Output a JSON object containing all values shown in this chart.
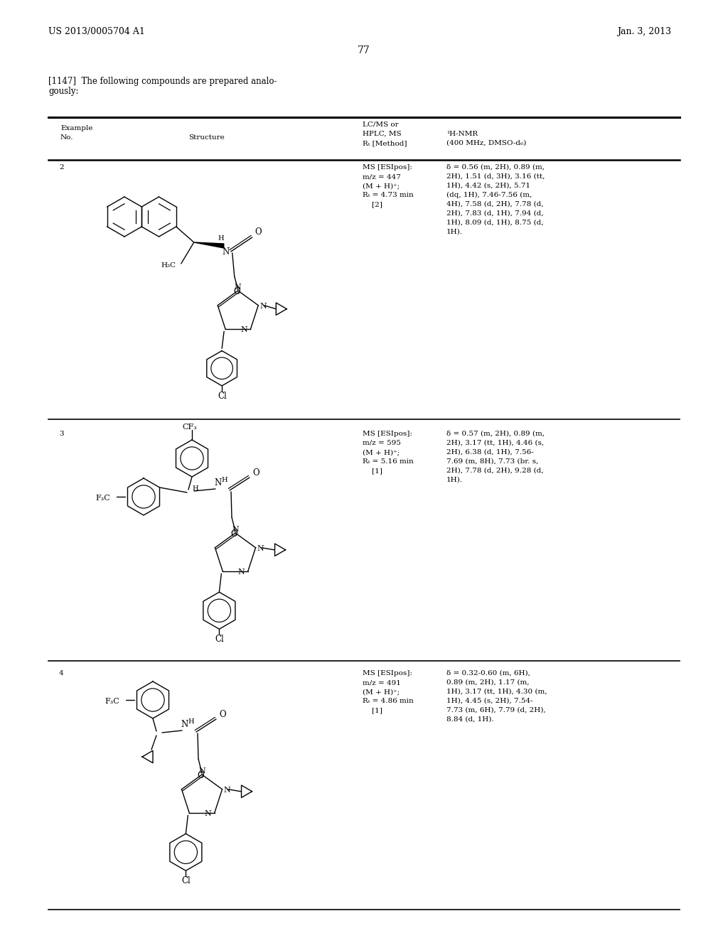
{
  "page_header_left": "US 2013/0005704 A1",
  "page_header_right": "Jan. 3, 2013",
  "page_number": "77",
  "paragraph_line1": "[1147]  The following compounds are prepared analo-",
  "paragraph_line2": "gously:",
  "table_col1_line1": "Example",
  "table_col1_line2": "No.",
  "table_col2": "Structure",
  "table_col3_line1": "LC/MS or",
  "table_col3_line2": "HPLC, MS",
  "table_col3_line3": "Rₜ [Method]",
  "table_col4_line1": "¹H-NMR",
  "table_col4_line2": "(400 MHz, DMSO-d₆)",
  "ex2_no": "2",
  "ex2_ms_line1": "MS [ESIpos]:",
  "ex2_ms_line2": "m/z = 447",
  "ex2_ms_line3": "(M + H)⁺;",
  "ex2_ms_line4": "Rₜ = 4.73 min",
  "ex2_ms_line5": "    [2]",
  "ex2_nmr_line1": "δ = 0.56 (m, 2H), 0.89 (m,",
  "ex2_nmr_line2": "2H), 1.51 (d, 3H), 3.16 (tt,",
  "ex2_nmr_line3": "1H), 4.42 (s, 2H), 5.71",
  "ex2_nmr_line4": "(dq, 1H), 7.46-7.56 (m,",
  "ex2_nmr_line5": "4H), 7.58 (d, 2H), 7.78 (d,",
  "ex2_nmr_line6": "2H), 7.83 (d, 1H), 7.94 (d,",
  "ex2_nmr_line7": "1H), 8.09 (d, 1H), 8.75 (d,",
  "ex2_nmr_line8": "1H).",
  "ex3_no": "3",
  "ex3_ms_line1": "MS [ESIpos]:",
  "ex3_ms_line2": "m/z = 595",
  "ex3_ms_line3": "(M + H)⁺;",
  "ex3_ms_line4": "Rₜ = 5.16 min",
  "ex3_ms_line5": "    [1]",
  "ex3_nmr_line1": "δ = 0.57 (m, 2H), 0.89 (m,",
  "ex3_nmr_line2": "2H), 3.17 (tt, 1H), 4.46 (s,",
  "ex3_nmr_line3": "2H), 6.38 (d, 1H), 7.56-",
  "ex3_nmr_line4": "7.69 (m, 8H), 7.73 (br. s,",
  "ex3_nmr_line5": "2H), 7.78 (d, 2H), 9.28 (d,",
  "ex3_nmr_line6": "1H).",
  "ex4_no": "4",
  "ex4_ms_line1": "MS [ESIpos]:",
  "ex4_ms_line2": "m/z = 491",
  "ex4_ms_line3": "(M + H)⁺;",
  "ex4_ms_line4": "Rₜ = 4.86 min",
  "ex4_ms_line5": "    [1]",
  "ex4_nmr_line1": "δ = 0.32-0.60 (m, 6H),",
  "ex4_nmr_line2": "0.89 (m, 2H), 1.17 (m,",
  "ex4_nmr_line3": "1H), 3.17 (tt, 1H), 4.30 (m,",
  "ex4_nmr_line4": "1H), 4.45 (s, 2H), 7.54-",
  "ex4_nmr_line5": "7.73 (m, 6H), 7.79 (d, 2H),",
  "ex4_nmr_line6": "8.84 (d, 1H).",
  "background_color": "#ffffff",
  "text_color": "#000000"
}
